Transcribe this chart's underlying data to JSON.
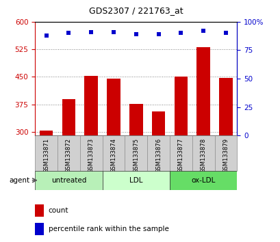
{
  "title": "GDS2307 / 221763_at",
  "samples": [
    "GSM133871",
    "GSM133872",
    "GSM133873",
    "GSM133874",
    "GSM133875",
    "GSM133876",
    "GSM133877",
    "GSM133878",
    "GSM133879"
  ],
  "counts": [
    303,
    390,
    453,
    445,
    377,
    355,
    450,
    530,
    447
  ],
  "percentiles": [
    88,
    90,
    91,
    91,
    89,
    89,
    90,
    92,
    90
  ],
  "groups": [
    {
      "label": "untreated",
      "start": 0,
      "end": 3,
      "color": "#b8f0b8"
    },
    {
      "label": "LDL",
      "start": 3,
      "end": 6,
      "color": "#ccffcc"
    },
    {
      "label": "ox-LDL",
      "start": 6,
      "end": 9,
      "color": "#66dd66"
    }
  ],
  "bar_color": "#cc0000",
  "dot_color": "#0000cc",
  "ylim_left": [
    290,
    600
  ],
  "ylim_right": [
    0,
    100
  ],
  "yticks_left": [
    300,
    375,
    450,
    525,
    600
  ],
  "yticks_right": [
    0,
    25,
    50,
    75,
    100
  ],
  "ylabel_left_color": "#cc0000",
  "ylabel_right_color": "#0000cc",
  "legend_count_label": "count",
  "legend_pct_label": "percentile rank within the sample",
  "agent_label": "agent"
}
